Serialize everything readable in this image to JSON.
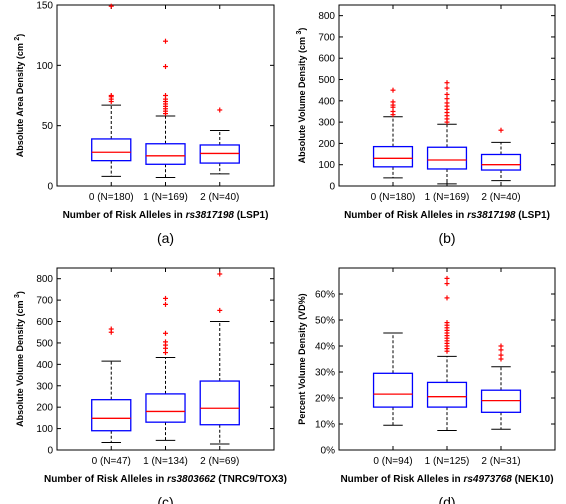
{
  "chart_data": [
    {
      "type": "box",
      "panel_label": "(a)",
      "ylabel": "Absolute Area Density (cm ",
      "ylabel_sup": "2",
      "ylabel_end": ")",
      "xlabel_pre": "Number of Risk Alleles in ",
      "xlabel_snp": "rs3817198",
      "xlabel_post": " (LSP1)",
      "categories": [
        "0 (N=180)",
        "1 (N=169)",
        "2 (N=40)"
      ],
      "ylim": [
        0,
        150
      ],
      "yticks": [
        0,
        50,
        100,
        150
      ],
      "boxes": [
        {
          "whisker_low": 8,
          "q1": 21,
          "median": 28,
          "q3": 39,
          "whisker_high": 67,
          "outliers": [
            70,
            72,
            74,
            75,
            149
          ]
        },
        {
          "whisker_low": 7,
          "q1": 18,
          "median": 25,
          "q3": 35,
          "whisker_high": 58,
          "outliers": [
            60,
            62,
            64,
            66,
            68,
            70,
            72,
            75,
            99,
            120
          ]
        },
        {
          "whisker_low": 10,
          "q1": 19,
          "median": 27,
          "q3": 34,
          "whisker_high": 46,
          "outliers": [
            63
          ]
        }
      ]
    },
    {
      "type": "box",
      "panel_label": "(b)",
      "ylabel": "Absolute Volume Density (cm ",
      "ylabel_sup": "3",
      "ylabel_end": ")",
      "xlabel_pre": "Number of Risk Alleles in ",
      "xlabel_snp": "rs3817198",
      "xlabel_post": " (LSP1)",
      "categories": [
        "0 (N=180)",
        "1 (N=169)",
        "2 (N=40)"
      ],
      "ylim": [
        0,
        850
      ],
      "yticks": [
        0,
        100,
        200,
        300,
        400,
        500,
        600,
        700,
        800
      ],
      "boxes": [
        {
          "whisker_low": 38,
          "q1": 90,
          "median": 130,
          "q3": 185,
          "whisker_high": 325,
          "outliers": [
            335,
            350,
            370,
            380,
            395,
            450
          ]
        },
        {
          "whisker_low": 10,
          "q1": 80,
          "median": 122,
          "q3": 182,
          "whisker_high": 290,
          "outliers": [
            300,
            315,
            330,
            345,
            360,
            375,
            390,
            410,
            430,
            460,
            485
          ]
        },
        {
          "whisker_low": 25,
          "q1": 75,
          "median": 100,
          "q3": 148,
          "whisker_high": 205,
          "outliers": [
            262
          ]
        }
      ]
    },
    {
      "type": "box",
      "panel_label": "(c)",
      "ylabel": "Absolute Volume Density (cm ",
      "ylabel_sup": "3",
      "ylabel_end": ")",
      "xlabel_pre": "Number of Risk Alleles in ",
      "xlabel_snp": "rs3803662",
      "xlabel_post": " (TNRC9/TOX3)",
      "categories": [
        "0 (N=47)",
        "1 (N=134)",
        "2 (N=69)"
      ],
      "ylim": [
        0,
        850
      ],
      "yticks": [
        0,
        100,
        200,
        300,
        400,
        500,
        600,
        700,
        800
      ],
      "boxes": [
        {
          "whisker_low": 35,
          "q1": 90,
          "median": 148,
          "q3": 235,
          "whisker_high": 415,
          "outliers": [
            550,
            565
          ]
        },
        {
          "whisker_low": 45,
          "q1": 130,
          "median": 180,
          "q3": 262,
          "whisker_high": 432,
          "outliers": [
            455,
            475,
            490,
            505,
            545,
            680,
            708
          ]
        },
        {
          "whisker_low": 28,
          "q1": 118,
          "median": 195,
          "q3": 322,
          "whisker_high": 600,
          "outliers": [
            652,
            822
          ]
        }
      ]
    },
    {
      "type": "box",
      "panel_label": "(d)",
      "ylabel": "Percent Volume Density (VD%)",
      "ylabel_sup": "",
      "ylabel_end": "",
      "xlabel_pre": "Number of Risk Alleles in ",
      "xlabel_snp": "rs4973768",
      "xlabel_post": " (NEK10)",
      "categories": [
        "0 (N=94)",
        "1 (N=125)",
        "2 (N=31)"
      ],
      "ylim": [
        0,
        70
      ],
      "yticks": [
        0,
        10,
        20,
        30,
        40,
        50,
        60
      ],
      "tick_suffix": "%",
      "boxes": [
        {
          "whisker_low": 9.5,
          "q1": 16.5,
          "median": 21.5,
          "q3": 29.5,
          "whisker_high": 45,
          "outliers": []
        },
        {
          "whisker_low": 7.5,
          "q1": 16.5,
          "median": 20.5,
          "q3": 26,
          "whisker_high": 36,
          "outliers": [
            38,
            39,
            40,
            41,
            42,
            43,
            44,
            45,
            46,
            47,
            48,
            49,
            58.5,
            64,
            66
          ]
        },
        {
          "whisker_low": 8,
          "q1": 14.5,
          "median": 19,
          "q3": 23,
          "whisker_high": 32,
          "outliers": [
            35,
            36.5,
            38.5,
            40
          ]
        }
      ]
    }
  ],
  "colors": {
    "box": "#0000ff",
    "median": "#ff0000",
    "outlier": "#ff0000",
    "whisker": "#000000"
  }
}
